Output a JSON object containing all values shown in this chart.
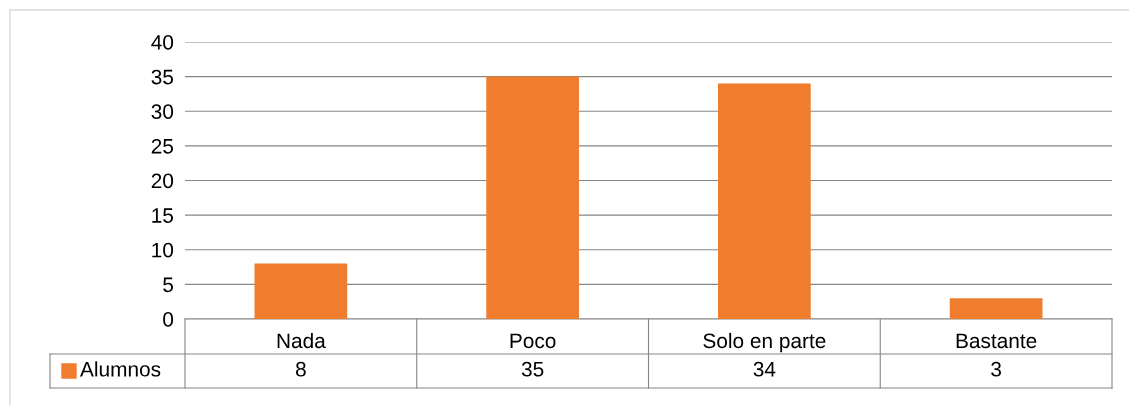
{
  "chart_data": {
    "type": "bar",
    "categories": [
      "Nada",
      "Poco",
      "Solo en parte",
      "Bastante"
    ],
    "series": [
      {
        "name": "Alumnos",
        "color": "#f07d2e",
        "values": [
          8,
          35,
          34,
          3
        ]
      }
    ],
    "ylim": [
      0,
      40
    ],
    "yticks": [
      0,
      5,
      10,
      15,
      20,
      25,
      30,
      35,
      40
    ],
    "grid": "y",
    "data_labels": true,
    "legend": "bottom left"
  }
}
